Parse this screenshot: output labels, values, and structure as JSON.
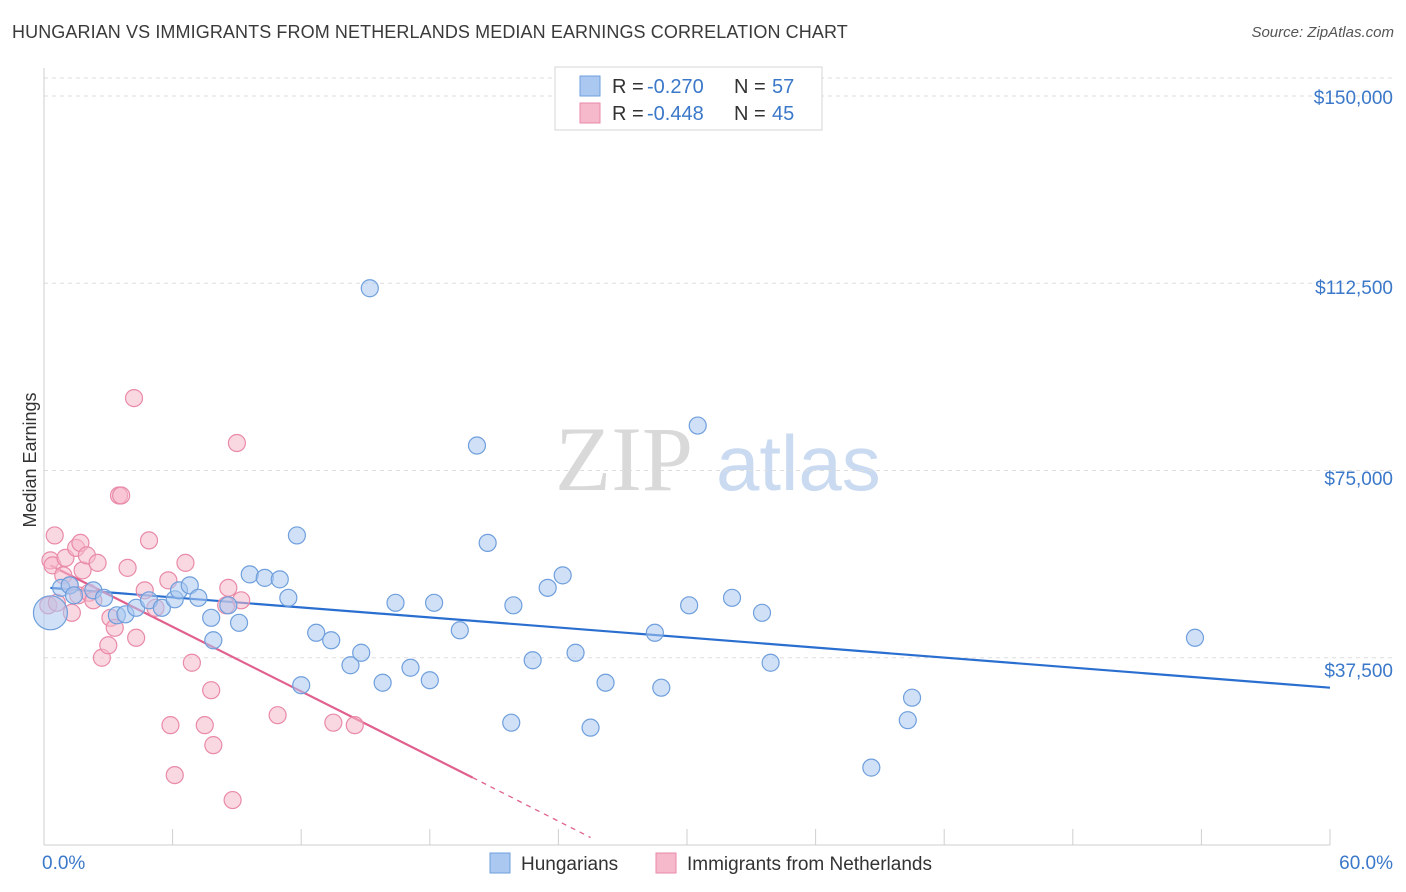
{
  "title": "HUNGARIAN VS IMMIGRANTS FROM NETHERLANDS MEDIAN EARNINGS CORRELATION CHART",
  "source": "Source: ZipAtlas.com",
  "watermark": {
    "zip": "ZIP",
    "atlas": "atlas"
  },
  "colors": {
    "blue_fill": "#aac8f0",
    "blue_stroke": "#6f9fdc",
    "blue_line": "#2a6fd0",
    "pink_fill": "#f6b8cb",
    "pink_stroke": "#e98aa8",
    "pink_line": "#e0608e",
    "tick_label": "#3b78c9"
  },
  "legend": {
    "series1": {
      "r_label": "R = ",
      "r_value": "-0.270",
      "n_label": "N = ",
      "n_value": "57"
    },
    "series2": {
      "r_label": "R = ",
      "r_value": "-0.448",
      "n_label": "N = ",
      "n_value": "45"
    }
  },
  "chart_data": {
    "type": "scatter",
    "xlabel": "",
    "ylabel": "Median Earnings",
    "xlim": [
      0,
      60
    ],
    "ylim": [
      0,
      150000
    ],
    "x_tick_labels": [
      "0.0%",
      "60.0%"
    ],
    "y_tick_labels": [
      "$37,500",
      "$75,000",
      "$112,500",
      "$150,000"
    ],
    "y_ticks": [
      37500,
      75000,
      112500,
      150000
    ],
    "legend_position": "bottom",
    "series": [
      {
        "name": "Hungarians",
        "color": "blue",
        "trend": {
          "x": [
            0.3,
            60.0
          ],
          "y": [
            51500,
            31500
          ]
        },
        "points": [
          [
            0.3,
            46500,
            "big"
          ],
          [
            0.8,
            51500
          ],
          [
            1.2,
            52000
          ],
          [
            1.4,
            50000
          ],
          [
            2.3,
            51000
          ],
          [
            2.8,
            49500
          ],
          [
            3.4,
            46000
          ],
          [
            3.8,
            46200
          ],
          [
            4.3,
            47500
          ],
          [
            4.9,
            49000
          ],
          [
            5.5,
            47500
          ],
          [
            6.1,
            49200
          ],
          [
            6.3,
            51000
          ],
          [
            6.8,
            52000
          ],
          [
            7.2,
            49500
          ],
          [
            7.8,
            45500
          ],
          [
            7.9,
            41000
          ],
          [
            8.6,
            48000
          ],
          [
            9.1,
            44500
          ],
          [
            9.6,
            54200
          ],
          [
            10.3,
            53500
          ],
          [
            11.0,
            53200
          ],
          [
            11.4,
            49500
          ],
          [
            11.8,
            62000
          ],
          [
            12.0,
            32000
          ],
          [
            12.7,
            42500
          ],
          [
            13.4,
            41000
          ],
          [
            14.3,
            36000
          ],
          [
            14.8,
            38500
          ],
          [
            15.2,
            111500
          ],
          [
            15.8,
            32500
          ],
          [
            16.4,
            48500
          ],
          [
            17.1,
            35500
          ],
          [
            18.0,
            33000
          ],
          [
            18.2,
            48500
          ],
          [
            19.4,
            43000
          ],
          [
            20.2,
            80000
          ],
          [
            20.7,
            60500
          ],
          [
            21.8,
            24500
          ],
          [
            21.9,
            48000
          ],
          [
            22.8,
            37000
          ],
          [
            23.5,
            51500
          ],
          [
            24.2,
            54000
          ],
          [
            24.8,
            38500
          ],
          [
            25.5,
            23500
          ],
          [
            26.2,
            32500
          ],
          [
            28.5,
            42500
          ],
          [
            28.8,
            31500
          ],
          [
            30.1,
            48000
          ],
          [
            30.5,
            84000
          ],
          [
            32.1,
            49500
          ],
          [
            33.5,
            46500
          ],
          [
            33.9,
            36500
          ],
          [
            38.6,
            15500
          ],
          [
            40.3,
            25000
          ],
          [
            40.5,
            29500
          ],
          [
            53.7,
            41500
          ]
        ]
      },
      {
        "name": "Immigrants from Netherlands",
        "color": "pink",
        "trend": {
          "x": [
            0.3,
            20.0
          ],
          "y": [
            56000,
            13500
          ]
        },
        "trend_dashed": {
          "x": [
            20.0,
            25.5
          ],
          "y": [
            13500,
            1500
          ]
        },
        "points": [
          [
            0.2,
            48000
          ],
          [
            0.3,
            57000
          ],
          [
            0.4,
            56000
          ],
          [
            0.5,
            62000
          ],
          [
            0.6,
            48500
          ],
          [
            0.9,
            54000
          ],
          [
            1.0,
            57500
          ],
          [
            1.2,
            52000
          ],
          [
            1.3,
            46500
          ],
          [
            1.5,
            59500
          ],
          [
            1.6,
            50000
          ],
          [
            1.7,
            60500
          ],
          [
            1.8,
            55000
          ],
          [
            2.0,
            58000
          ],
          [
            2.1,
            50500
          ],
          [
            2.3,
            49000
          ],
          [
            2.5,
            56500
          ],
          [
            2.7,
            37500
          ],
          [
            3.0,
            40000
          ],
          [
            3.1,
            45500
          ],
          [
            3.3,
            43500
          ],
          [
            3.5,
            70000
          ],
          [
            3.6,
            70000
          ],
          [
            3.9,
            55500
          ],
          [
            4.3,
            41500
          ],
          [
            4.7,
            51000
          ],
          [
            4.9,
            61000
          ],
          [
            5.2,
            47500
          ],
          [
            5.8,
            53000
          ],
          [
            5.9,
            24000
          ],
          [
            6.1,
            14000
          ],
          [
            6.6,
            56500
          ],
          [
            6.9,
            36500
          ],
          [
            7.5,
            24000
          ],
          [
            7.8,
            31000
          ],
          [
            7.9,
            20000
          ],
          [
            8.5,
            48000
          ],
          [
            8.6,
            51500
          ],
          [
            8.8,
            9000
          ],
          [
            9.0,
            80500
          ],
          [
            9.2,
            49000
          ],
          [
            10.9,
            26000
          ],
          [
            13.5,
            24500
          ],
          [
            14.5,
            24000
          ],
          [
            4.2,
            89500
          ]
        ]
      }
    ]
  }
}
